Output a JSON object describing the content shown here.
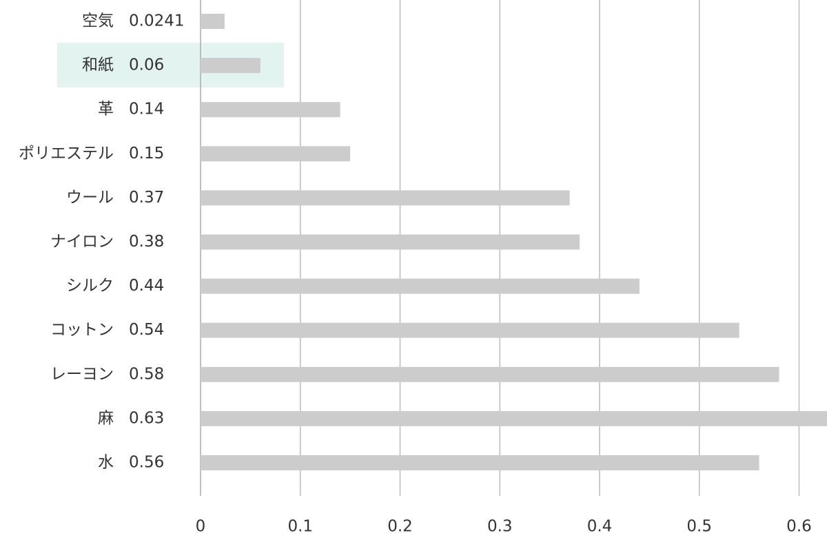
{
  "chart_data": {
    "type": "bar",
    "orientation": "horizontal",
    "categories": [
      "空気",
      "和紙",
      "革",
      "ポリエステル",
      "ウール",
      "ナイロン",
      "シルク",
      "コットン",
      "レーヨン",
      "麻",
      "水"
    ],
    "values": [
      0.0241,
      0.06,
      0.14,
      0.15,
      0.37,
      0.38,
      0.44,
      0.54,
      0.58,
      0.63,
      0.56
    ],
    "color": "#cccccc",
    "highlight_index": 1,
    "highlight_color": "#e3f3f0",
    "xlim": [
      0,
      0.628
    ],
    "xticks": [
      0,
      0.1,
      0.2,
      0.3,
      0.4,
      0.5,
      0.6
    ],
    "grid": true
  }
}
